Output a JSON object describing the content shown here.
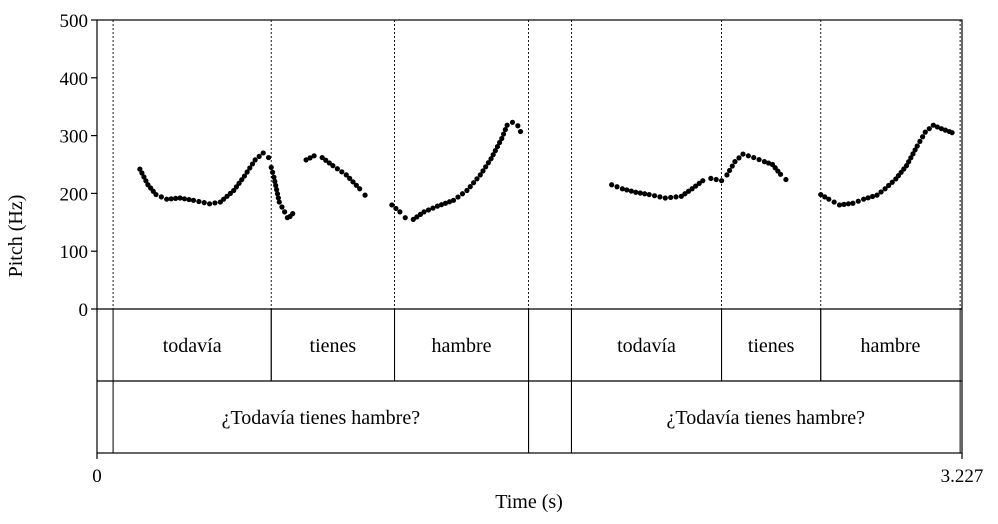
{
  "chart_data": {
    "type": "scatter",
    "title": "",
    "xlabel": "Time (s)",
    "ylabel": "Pitch (Hz)",
    "xlim": [
      0,
      3.227
    ],
    "ylim": [
      0,
      500
    ],
    "x_tick_labels": [
      "0",
      "3.227"
    ],
    "y_tick_labels": [
      "0",
      "100",
      "200",
      "300",
      "400",
      "500"
    ],
    "y_ticks": [
      0,
      100,
      200,
      300,
      400,
      500
    ],
    "grid": false,
    "marker_color": "#000000",
    "boundaries_time": [
      0.06,
      0.65,
      1.11,
      1.61,
      1.77,
      2.33,
      2.7,
      3.22
    ],
    "tiers": {
      "words": [
        {
          "label": "todavía",
          "start": 0.06,
          "end": 0.65
        },
        {
          "label": "tienes",
          "start": 0.65,
          "end": 1.11
        },
        {
          "label": "hambre",
          "start": 1.11,
          "end": 1.61
        },
        {
          "label": "",
          "start": 1.61,
          "end": 1.77
        },
        {
          "label": "todavía",
          "start": 1.77,
          "end": 2.33
        },
        {
          "label": "tienes",
          "start": 2.33,
          "end": 2.7
        },
        {
          "label": "hambre",
          "start": 2.7,
          "end": 3.22
        }
      ],
      "phrases": [
        {
          "label": "¿Todavía tienes hambre?",
          "start": 0.06,
          "end": 1.61
        },
        {
          "label": "",
          "start": 1.61,
          "end": 1.77
        },
        {
          "label": "¿Todavía tienes hambre?",
          "start": 1.77,
          "end": 3.22
        }
      ]
    },
    "series": [
      {
        "segments": [
          [
            [
              0.16,
              242
            ],
            [
              0.19,
              215
            ],
            [
              0.22,
              198
            ],
            [
              0.26,
              190
            ],
            [
              0.31,
              192
            ],
            [
              0.36,
              188
            ],
            [
              0.42,
              182
            ],
            [
              0.46,
              185
            ],
            [
              0.51,
              205
            ],
            [
              0.55,
              230
            ],
            [
              0.59,
              258
            ],
            [
              0.62,
              270
            ],
            [
              0.64,
              262
            ]
          ],
          [
            [
              0.65,
              245
            ],
            [
              0.66,
              228
            ],
            [
              0.68,
              185
            ],
            [
              0.7,
              168
            ],
            [
              0.71,
              158
            ],
            [
              0.72,
              160
            ],
            [
              0.73,
              165
            ]
          ],
          [
            [
              0.78,
              258
            ],
            [
              0.81,
              265
            ],
            [
              0.84,
              262
            ],
            [
              0.88,
              248
            ],
            [
              0.93,
              232
            ],
            [
              0.98,
              208
            ],
            [
              1.0,
              197
            ]
          ],
          [
            [
              1.1,
              180
            ],
            [
              1.13,
              168
            ],
            [
              1.15,
              158
            ],
            [
              1.18,
              155
            ],
            [
              1.22,
              168
            ],
            [
              1.27,
              178
            ],
            [
              1.33,
              188
            ],
            [
              1.38,
              205
            ],
            [
              1.43,
              232
            ],
            [
              1.47,
              260
            ],
            [
              1.51,
              295
            ],
            [
              1.53,
              318
            ],
            [
              1.55,
              323
            ],
            [
              1.57,
              317
            ],
            [
              1.58,
              307
            ]
          ],
          [
            [
              1.92,
              215
            ],
            [
              1.96,
              208
            ],
            [
              2.01,
              202
            ],
            [
              2.06,
              198
            ],
            [
              2.12,
              192
            ],
            [
              2.18,
              195
            ],
            [
              2.22,
              208
            ],
            [
              2.26,
              222
            ],
            [
              2.29,
              226
            ],
            [
              2.33,
              222
            ]
          ],
          [
            [
              2.35,
              232
            ],
            [
              2.38,
              255
            ],
            [
              2.41,
              268
            ],
            [
              2.45,
              262
            ],
            [
              2.49,
              255
            ],
            [
              2.52,
              250
            ],
            [
              2.55,
              233
            ],
            [
              2.57,
              224
            ]
          ],
          [
            [
              2.7,
              198
            ],
            [
              2.73,
              190
            ],
            [
              2.77,
              180
            ],
            [
              2.82,
              183
            ],
            [
              2.86,
              190
            ],
            [
              2.91,
              197
            ],
            [
              2.94,
              208
            ],
            [
              2.98,
              225
            ],
            [
              3.02,
              248
            ],
            [
              3.06,
              282
            ],
            [
              3.09,
              306
            ],
            [
              3.12,
              318
            ],
            [
              3.15,
              312
            ],
            [
              3.18,
              307
            ],
            [
              3.19,
              305
            ]
          ]
        ]
      }
    ]
  }
}
